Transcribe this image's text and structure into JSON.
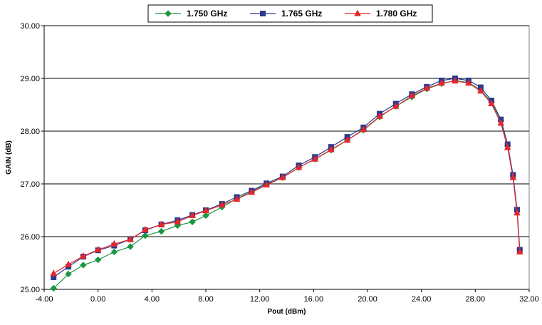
{
  "chart_data": {
    "type": "line",
    "title": "",
    "xlabel": "Pout (dBm)",
    "ylabel": "GAIN (dB)",
    "xlim": [
      -4,
      32
    ],
    "ylim": [
      25,
      30
    ],
    "x_ticks": [
      "-4.00",
      "0.00",
      "4.00",
      "8.00",
      "12.00",
      "16.00",
      "20.00",
      "24.00",
      "28.00",
      "32.00"
    ],
    "y_ticks": [
      "25.00",
      "26.00",
      "27.00",
      "28.00",
      "29.00",
      "30.00"
    ],
    "grid": "horizontal",
    "legend_position": "top-center",
    "series": [
      {
        "name": "1.750 GHz",
        "color": "#1a9641",
        "marker": "diamond",
        "points": [
          [
            -3.3,
            25.02
          ],
          [
            -2.2,
            25.29
          ],
          [
            -1.1,
            25.46
          ],
          [
            0.0,
            25.56
          ],
          [
            1.2,
            25.71
          ],
          [
            2.4,
            25.81
          ],
          [
            3.5,
            26.02
          ],
          [
            4.7,
            26.1
          ],
          [
            5.9,
            26.21
          ],
          [
            7.0,
            26.28
          ],
          [
            8.0,
            26.4
          ],
          [
            9.2,
            26.56
          ],
          [
            10.3,
            26.72
          ],
          [
            11.4,
            26.85
          ],
          [
            12.5,
            26.99
          ],
          [
            13.7,
            27.12
          ],
          [
            14.9,
            27.31
          ],
          [
            16.1,
            27.47
          ],
          [
            17.3,
            27.64
          ],
          [
            18.5,
            27.83
          ],
          [
            19.7,
            28.02
          ],
          [
            20.9,
            28.27
          ],
          [
            22.1,
            28.47
          ],
          [
            23.3,
            28.65
          ],
          [
            24.4,
            28.8
          ],
          [
            25.5,
            28.9
          ],
          [
            26.5,
            28.96
          ],
          [
            27.5,
            28.92
          ],
          [
            28.4,
            28.78
          ],
          [
            29.2,
            28.55
          ],
          [
            29.9,
            28.2
          ],
          [
            30.4,
            27.72
          ],
          [
            30.8,
            27.15
          ],
          [
            31.1,
            26.48
          ],
          [
            31.3,
            25.75
          ]
        ]
      },
      {
        "name": "1.765 GHz",
        "color": "#2b3a8f",
        "marker": "square",
        "points": [
          [
            -3.3,
            25.23
          ],
          [
            -2.2,
            25.43
          ],
          [
            -1.1,
            25.62
          ],
          [
            0.0,
            25.74
          ],
          [
            1.2,
            25.83
          ],
          [
            2.4,
            25.95
          ],
          [
            3.5,
            26.12
          ],
          [
            4.7,
            26.23
          ],
          [
            5.9,
            26.31
          ],
          [
            7.0,
            26.41
          ],
          [
            8.0,
            26.5
          ],
          [
            9.2,
            26.62
          ],
          [
            10.3,
            26.75
          ],
          [
            11.4,
            26.87
          ],
          [
            12.5,
            27.01
          ],
          [
            13.7,
            27.14
          ],
          [
            14.9,
            27.35
          ],
          [
            16.1,
            27.51
          ],
          [
            17.3,
            27.7
          ],
          [
            18.5,
            27.89
          ],
          [
            19.7,
            28.07
          ],
          [
            20.9,
            28.33
          ],
          [
            22.1,
            28.52
          ],
          [
            23.3,
            28.7
          ],
          [
            24.4,
            28.84
          ],
          [
            25.5,
            28.96
          ],
          [
            26.5,
            29.0
          ],
          [
            27.5,
            28.96
          ],
          [
            28.4,
            28.83
          ],
          [
            29.2,
            28.58
          ],
          [
            29.9,
            28.22
          ],
          [
            30.4,
            27.75
          ],
          [
            30.8,
            27.17
          ],
          [
            31.1,
            26.51
          ],
          [
            31.3,
            25.75
          ]
        ]
      },
      {
        "name": "1.780 GHz",
        "color": "#e8262b",
        "marker": "triangle",
        "points": [
          [
            -3.3,
            25.3
          ],
          [
            -2.2,
            25.47
          ],
          [
            -1.1,
            25.63
          ],
          [
            0.0,
            25.75
          ],
          [
            1.2,
            25.86
          ],
          [
            2.4,
            25.95
          ],
          [
            3.5,
            26.13
          ],
          [
            4.7,
            26.23
          ],
          [
            5.9,
            26.28
          ],
          [
            7.0,
            26.4
          ],
          [
            8.0,
            26.49
          ],
          [
            9.2,
            26.6
          ],
          [
            10.3,
            26.71
          ],
          [
            11.4,
            26.84
          ],
          [
            12.5,
            26.98
          ],
          [
            13.7,
            27.12
          ],
          [
            14.9,
            27.31
          ],
          [
            16.1,
            27.47
          ],
          [
            17.3,
            27.65
          ],
          [
            18.5,
            27.83
          ],
          [
            19.7,
            28.03
          ],
          [
            20.9,
            28.28
          ],
          [
            22.1,
            28.47
          ],
          [
            23.3,
            28.67
          ],
          [
            24.4,
            28.81
          ],
          [
            25.5,
            28.91
          ],
          [
            26.5,
            28.95
          ],
          [
            27.5,
            28.91
          ],
          [
            28.4,
            28.76
          ],
          [
            29.2,
            28.52
          ],
          [
            29.9,
            28.15
          ],
          [
            30.4,
            27.69
          ],
          [
            30.8,
            27.12
          ],
          [
            31.1,
            26.45
          ],
          [
            31.3,
            25.71
          ]
        ]
      }
    ]
  }
}
